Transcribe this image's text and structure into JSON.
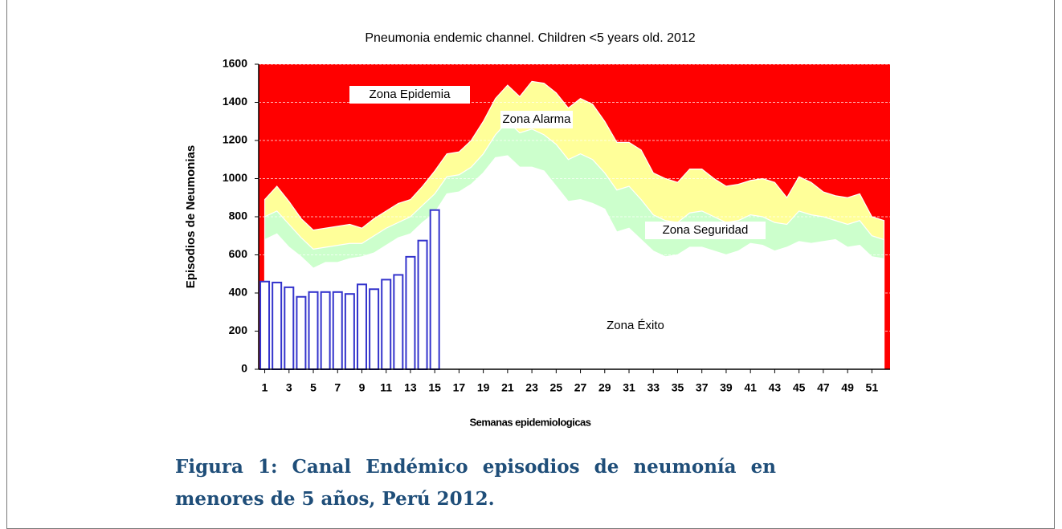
{
  "chart_data": {
    "type": "endemic_channel",
    "title": "Pneumonia endemic channel. Children <5 years old. 2012",
    "x_label": "Semanas epidemiologicas",
    "y_label": "Episodios de Neumonias",
    "caption": "Figura 1: Canal Endémico episodios de neumonía en menores de 5 años, Perú 2012.",
    "x": [
      1,
      2,
      3,
      4,
      5,
      6,
      7,
      8,
      9,
      10,
      11,
      12,
      13,
      14,
      15,
      16,
      17,
      18,
      19,
      20,
      21,
      22,
      23,
      24,
      25,
      26,
      27,
      28,
      29,
      30,
      31,
      32,
      33,
      34,
      35,
      36,
      37,
      38,
      39,
      40,
      41,
      42,
      43,
      44,
      45,
      46,
      47,
      48,
      49,
      50,
      51,
      52
    ],
    "xlim": [
      0.5,
      52.5
    ],
    "xticks": [
      1,
      3,
      5,
      7,
      9,
      11,
      13,
      15,
      17,
      19,
      21,
      23,
      25,
      27,
      29,
      31,
      33,
      35,
      37,
      39,
      41,
      43,
      45,
      47,
      49,
      51
    ],
    "ylim": [
      0,
      1600
    ],
    "yticks": [
      0,
      200,
      400,
      600,
      800,
      1000,
      1200,
      1400,
      1600
    ],
    "grid": true,
    "epidemic_zone": {
      "name": "Zona Epidemia",
      "color": "#ff0000"
    },
    "series": [
      {
        "name": "Zona Alarma",
        "color": "#ffff99",
        "values": [
          890,
          960,
          880,
          790,
          730,
          740,
          750,
          760,
          740,
          790,
          830,
          870,
          890,
          960,
          1040,
          1130,
          1140,
          1200,
          1300,
          1420,
          1490,
          1430,
          1510,
          1500,
          1450,
          1370,
          1420,
          1390,
          1300,
          1190,
          1190,
          1150,
          1030,
          1000,
          980,
          1050,
          1050,
          1000,
          960,
          970,
          990,
          1000,
          980,
          900,
          1010,
          980,
          930,
          910,
          900,
          920,
          800,
          780
        ]
      },
      {
        "name": "Zona Seguridad",
        "color": "#ccffcc",
        "values": [
          800,
          830,
          760,
          690,
          630,
          640,
          650,
          660,
          660,
          700,
          740,
          770,
          800,
          860,
          920,
          1010,
          1020,
          1060,
          1130,
          1230,
          1300,
          1240,
          1260,
          1230,
          1180,
          1100,
          1130,
          1100,
          1030,
          940,
          960,
          890,
          810,
          780,
          770,
          820,
          830,
          800,
          770,
          780,
          810,
          800,
          770,
          760,
          830,
          810,
          800,
          780,
          760,
          780,
          700,
          680
        ]
      },
      {
        "name": "Zona Éxito",
        "color": "#ffffff",
        "values": [
          680,
          710,
          640,
          590,
          530,
          560,
          560,
          580,
          590,
          610,
          650,
          690,
          710,
          770,
          820,
          920,
          930,
          970,
          1030,
          1110,
          1120,
          1060,
          1060,
          1040,
          960,
          880,
          890,
          870,
          840,
          720,
          740,
          680,
          620,
          590,
          600,
          640,
          640,
          620,
          600,
          620,
          660,
          650,
          620,
          640,
          670,
          660,
          670,
          680,
          640,
          650,
          590,
          580
        ]
      }
    ],
    "cases": {
      "color": "#3333cc",
      "values": [
        460,
        455,
        430,
        380,
        405,
        405,
        405,
        395,
        445,
        420,
        470,
        495,
        590,
        675,
        835
      ]
    }
  }
}
